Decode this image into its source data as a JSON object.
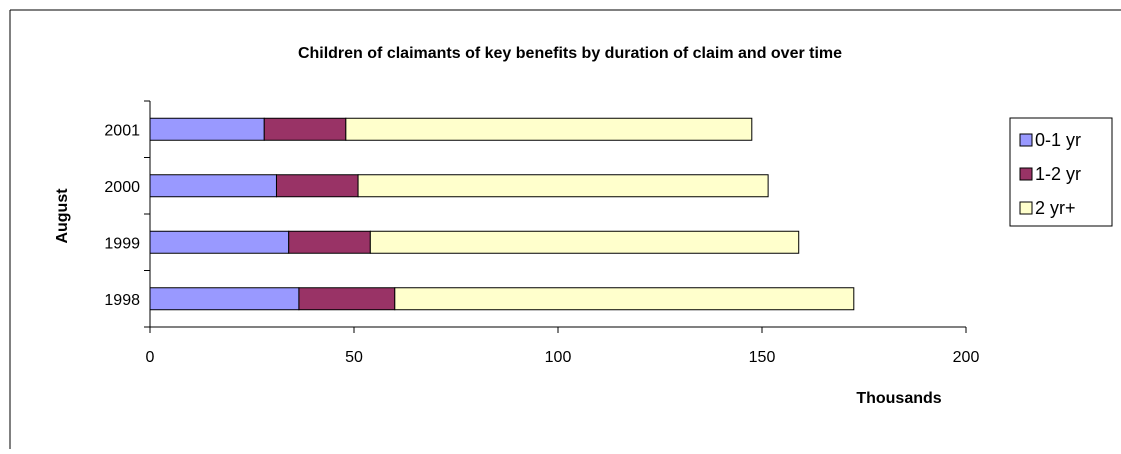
{
  "chart_data": {
    "type": "bar",
    "orientation": "horizontal",
    "stacked": true,
    "title": "Children of claimants of key benefits by duration of claim and over time",
    "xlabel": "Thousands",
    "ylabel": "August",
    "categories": [
      "2001",
      "2000",
      "1999",
      "1998"
    ],
    "series": [
      {
        "name": "0-1 yr",
        "values": [
          28,
          31,
          34,
          36.5
        ]
      },
      {
        "name": "1-2 yr",
        "values": [
          20,
          20,
          20,
          23.5
        ]
      },
      {
        "name": "2 yr+",
        "values": [
          99.5,
          100.5,
          105,
          112.5
        ]
      }
    ],
    "xlim": [
      0,
      200
    ],
    "xticks": [
      "0",
      "50",
      "100",
      "150",
      "200"
    ],
    "grid": false,
    "legend_position": "right",
    "colors": {
      "series": [
        "#9999FF",
        "#993366",
        "#FFFFCC"
      ],
      "outline": "#000000",
      "border": "#000000"
    }
  }
}
